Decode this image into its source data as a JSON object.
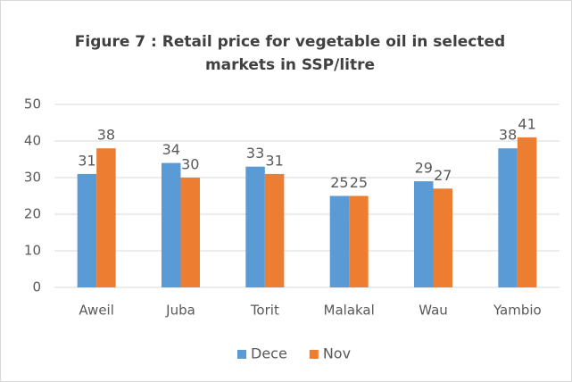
{
  "chart_data": {
    "type": "bar",
    "title": "Figure 7 : Retail price for vegetable oil in selected markets in SSP/litre",
    "categories": [
      "Aweil",
      "Juba",
      "Torit",
      "Malakal",
      "Wau",
      "Yambio"
    ],
    "series": [
      {
        "name": "Dece",
        "color": "#5b9bd5",
        "values": [
          31,
          34,
          33,
          25,
          29,
          38
        ]
      },
      {
        "name": "Nov",
        "color": "#ed7d31",
        "values": [
          38,
          30,
          31,
          25,
          27,
          41
        ]
      }
    ],
    "ylim": [
      0,
      50
    ],
    "yticks": [
      0,
      10,
      20,
      30,
      40,
      50
    ],
    "grid": true,
    "legend": "bottom"
  }
}
